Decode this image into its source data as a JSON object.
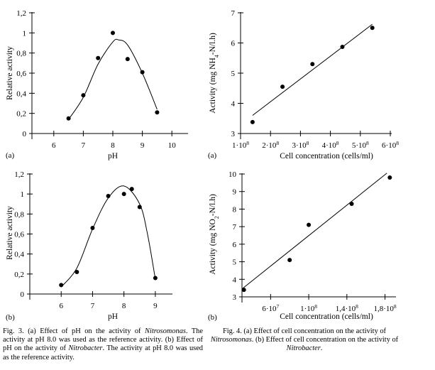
{
  "chart_data": [
    {
      "id": "fig3a",
      "type": "scatter",
      "panel_label": "(a)",
      "xlabel": "pH",
      "ylabel": "Relative activity",
      "xlim": [
        5.5,
        10.5
      ],
      "ylim": [
        0,
        1.2
      ],
      "xticks": [
        "6",
        "7",
        "8",
        "9",
        "10"
      ],
      "yticks": [
        "0",
        "0,2",
        "0,4",
        "0,6",
        "0,8",
        "1",
        "1,2"
      ],
      "points": [
        {
          "x": 6.5,
          "y": 0.15
        },
        {
          "x": 7.0,
          "y": 0.38
        },
        {
          "x": 7.5,
          "y": 0.75
        },
        {
          "x": 8.0,
          "y": 1.0
        },
        {
          "x": 8.5,
          "y": 0.74
        },
        {
          "x": 9.0,
          "y": 0.61
        },
        {
          "x": 9.5,
          "y": 0.21
        }
      ],
      "curve": [
        {
          "x": 6.5,
          "y": 0.14
        },
        {
          "x": 7.0,
          "y": 0.36
        },
        {
          "x": 7.5,
          "y": 0.69
        },
        {
          "x": 8.0,
          "y": 0.91
        },
        {
          "x": 8.2,
          "y": 0.93
        },
        {
          "x": 8.5,
          "y": 0.88
        },
        {
          "x": 9.0,
          "y": 0.6
        },
        {
          "x": 9.5,
          "y": 0.24
        }
      ]
    },
    {
      "id": "fig3b",
      "type": "scatter",
      "panel_label": "(b)",
      "xlabel": "pH",
      "ylabel": "Relative activity",
      "xlim": [
        5.0,
        9.5
      ],
      "ylim": [
        0,
        1.2
      ],
      "xticks": [
        "6",
        "7",
        "8",
        "9"
      ],
      "yticks": [
        "0",
        "0,2",
        "0,4",
        "0,6",
        "0,8",
        "1",
        "1,2"
      ],
      "points": [
        {
          "x": 6.0,
          "y": 0.09
        },
        {
          "x": 6.5,
          "y": 0.22
        },
        {
          "x": 7.0,
          "y": 0.66
        },
        {
          "x": 7.5,
          "y": 0.98
        },
        {
          "x": 8.0,
          "y": 1.0
        },
        {
          "x": 8.25,
          "y": 1.05
        },
        {
          "x": 8.5,
          "y": 0.87
        },
        {
          "x": 9.0,
          "y": 0.16
        }
      ],
      "curve": [
        {
          "x": 6.0,
          "y": 0.07
        },
        {
          "x": 6.5,
          "y": 0.26
        },
        {
          "x": 7.0,
          "y": 0.65
        },
        {
          "x": 7.5,
          "y": 0.96
        },
        {
          "x": 8.0,
          "y": 1.08
        },
        {
          "x": 8.5,
          "y": 0.9
        },
        {
          "x": 8.75,
          "y": 0.6
        },
        {
          "x": 9.0,
          "y": 0.15
        }
      ]
    },
    {
      "id": "fig4a",
      "type": "scatter",
      "panel_label": "(a)",
      "xlabel": "Cell concentration (cells/ml)",
      "ylabel_parts": [
        "Activity (mg NH",
        "4",
        "-N/l.h)"
      ],
      "xlim": [
        100000000.0,
        600000000.0
      ],
      "ylim": [
        3,
        7
      ],
      "xticks": [
        "1·10",
        "2·10",
        "3·10",
        "4·10",
        "5·10",
        "6·10"
      ],
      "xtick_exp": "8",
      "yticks": [
        "3",
        "4",
        "5",
        "6",
        "7"
      ],
      "points": [
        {
          "x": 140000000.0,
          "y": 3.38
        },
        {
          "x": 240000000.0,
          "y": 4.55
        },
        {
          "x": 340000000.0,
          "y": 5.3
        },
        {
          "x": 440000000.0,
          "y": 5.87
        },
        {
          "x": 540000000.0,
          "y": 6.5
        }
      ],
      "fit": [
        {
          "x": 140000000.0,
          "y": 3.6
        },
        {
          "x": 540000000.0,
          "y": 6.62
        }
      ]
    },
    {
      "id": "fig4b",
      "type": "scatter",
      "panel_label": "(b)",
      "xlabel": "Cell concentration (cells/ml)",
      "ylabel_parts": [
        "Activity (mg NO",
        "2",
        "-N/l.h)"
      ],
      "xlim": [
        30000000.0,
        190000000.0
      ],
      "ylim": [
        3,
        10
      ],
      "xticks": [
        "6·10",
        "1·10",
        "1,4·10",
        "1,8·10"
      ],
      "xtick_exps": [
        "7",
        "8",
        "8",
        "8"
      ],
      "xtick_values": [
        60000000.0,
        100000000.0,
        140000000.0,
        180000000.0
      ],
      "yticks": [
        "3",
        "4",
        "5",
        "6",
        "7",
        "8",
        "9",
        "10"
      ],
      "points": [
        {
          "x": 32000000.0,
          "y": 3.4
        },
        {
          "x": 80000000.0,
          "y": 5.1
        },
        {
          "x": 100000000.0,
          "y": 7.1
        },
        {
          "x": 145000000.0,
          "y": 8.3
        },
        {
          "x": 185000000.0,
          "y": 9.8
        }
      ],
      "fit": [
        {
          "x": 30000000.0,
          "y": 3.45
        },
        {
          "x": 182000000.0,
          "y": 10.05
        }
      ]
    }
  ],
  "captions": {
    "fig3": {
      "prefix": "Fig. 3. (a) Effect of pH on the activity of ",
      "organism_a": "Nitrosomonas",
      "middle": ". The activity at pH 8.0 was used as the reference activity. (b) Effect of pH on the activity of ",
      "organism_b": "Nitrobacter",
      "suffix": ". The activity at pH 8.0 was used as the reference activity."
    },
    "fig4": {
      "prefix": "Fig. 4. (a) Effect of cell concentration on the activity of ",
      "organism_a": "Nitrosomonas",
      "middle": ". (b) Effect of cell concentration on the activity of ",
      "organism_b": "Nitrobacter",
      "suffix": "."
    }
  }
}
